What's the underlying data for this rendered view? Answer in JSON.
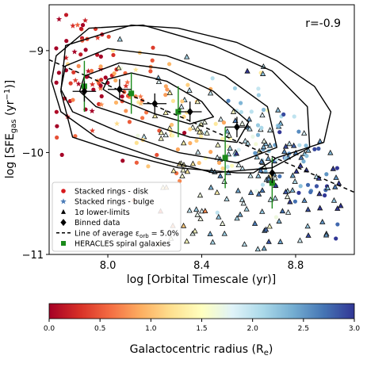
{
  "chart_data": {
    "type": "scatter",
    "xlabel": "log [Orbital Timescale (yr)]",
    "ylabel": "log [SFE",
    "ylabel_sub": "gas",
    "ylabel_tail": " (yr",
    "ylabel_sup": "−1",
    "ylabel_end": ")]",
    "xlim": [
      7.75,
      9.05
    ],
    "ylim": [
      -11.0,
      -8.55
    ],
    "xticks": [
      8.0,
      8.4,
      8.8
    ],
    "xtick_labels": [
      "8.0",
      "8.4",
      "8.8"
    ],
    "yticks": [
      -9,
      -10,
      -11
    ],
    "ytick_labels": [
      "−9",
      "−10",
      "−11"
    ],
    "annotation": "r=-0.9",
    "legend": {
      "position": "lower-left",
      "entries": [
        {
          "label": "Stacked rings - disk",
          "marker": "dot",
          "color": "#d7191c"
        },
        {
          "label": "Stacked rings - bulge",
          "marker": "star",
          "color": "#4a7bb7"
        },
        {
          "label": "1σ lower-limits",
          "marker": "triangle",
          "color": "#000000"
        },
        {
          "label": "Binned data",
          "marker": "diamond",
          "color": "#000000"
        },
        {
          "label": "Line of average ε",
          "label_sub": "orb",
          "label_tail": " = 5.0%",
          "marker": "dashed-line",
          "color": "#000000"
        },
        {
          "label": "HERACLES spiral galaxies",
          "marker": "square",
          "color": "#1a8a1a"
        }
      ]
    },
    "average_line": {
      "x": [
        7.75,
        9.05
      ],
      "y": [
        -9.09,
        -10.39
      ]
    },
    "binned_data": {
      "x": [
        7.9,
        8.05,
        8.2,
        8.35,
        8.55,
        8.7
      ],
      "y": [
        -9.4,
        -9.38,
        -9.52,
        -9.6,
        -9.75,
        -10.2
      ],
      "xerr": [
        0.05,
        0.05,
        0.05,
        0.05,
        0.05,
        0.05
      ],
      "yerr": [
        0.1,
        0.1,
        0.1,
        0.1,
        0.1,
        0.1
      ]
    },
    "heracles": {
      "x": [
        7.9,
        8.1,
        8.3,
        8.5,
        8.7
      ],
      "y": [
        -9.35,
        -9.42,
        -9.6,
        -10.05,
        -10.3
      ],
      "yerr": [
        0.25,
        0.2,
        0.25,
        0.3,
        0.25
      ]
    },
    "contours": [
      {
        "x": [
          8.0,
          8.1,
          8.25,
          8.4,
          8.45,
          8.35,
          8.2,
          8.05,
          7.98,
          8.0
        ],
        "y": [
          -9.28,
          -9.22,
          -9.3,
          -9.5,
          -9.65,
          -9.72,
          -9.62,
          -9.48,
          -9.38,
          -9.28
        ]
      },
      {
        "x": [
          7.9,
          8.05,
          8.25,
          8.45,
          8.6,
          8.55,
          8.35,
          8.15,
          7.95,
          7.88,
          7.9
        ],
        "y": [
          -9.25,
          -9.12,
          -9.18,
          -9.4,
          -9.7,
          -9.9,
          -9.85,
          -9.7,
          -9.55,
          -9.4,
          -9.25
        ]
      },
      {
        "x": [
          7.82,
          8.0,
          8.25,
          8.5,
          8.68,
          8.72,
          8.55,
          8.3,
          8.05,
          7.85,
          7.8,
          7.82
        ],
        "y": [
          -9.15,
          -8.98,
          -9.05,
          -9.25,
          -9.55,
          -9.95,
          -10.1,
          -10.0,
          -9.8,
          -9.6,
          -9.38,
          -9.15
        ]
      },
      {
        "x": [
          7.78,
          7.92,
          8.15,
          8.45,
          8.7,
          8.85,
          8.86,
          8.7,
          8.45,
          8.2,
          7.95,
          7.8,
          7.76,
          7.78
        ],
        "y": [
          -9.05,
          -8.78,
          -8.75,
          -8.95,
          -9.2,
          -9.55,
          -9.95,
          -10.15,
          -10.2,
          -10.05,
          -9.85,
          -9.6,
          -9.3,
          -9.05
        ]
      },
      {
        "x": [
          7.82,
          8.1,
          8.3,
          8.55,
          8.72,
          8.88,
          8.95,
          8.92,
          8.72,
          8.62,
          8.55,
          8.3,
          8.05,
          7.85,
          7.8,
          7.82
        ],
        "y": [
          -8.95,
          -8.75,
          -8.78,
          -8.92,
          -9.1,
          -9.35,
          -9.6,
          -9.9,
          -10.05,
          -10.2,
          -10.2,
          -10.15,
          -10.0,
          -9.85,
          -9.4,
          -8.95
        ]
      }
    ],
    "colorbar": {
      "label": "Galactocentric radius (R",
      "label_sub": "e",
      "label_tail": ")",
      "range": [
        0.0,
        3.0
      ],
      "ticks": [
        0.0,
        0.5,
        1.0,
        1.5,
        2.0,
        2.5,
        3.0
      ],
      "tick_labels": [
        "0.0",
        "0.5",
        "1.0",
        "1.5",
        "2.0",
        "2.5",
        "3.0"
      ],
      "colors": [
        "#a50026",
        "#d73027",
        "#f46d43",
        "#fdae61",
        "#fee090",
        "#ffffbf",
        "#e0f3f8",
        "#abd9e9",
        "#74add1",
        "#4575b4",
        "#313695"
      ]
    }
  }
}
